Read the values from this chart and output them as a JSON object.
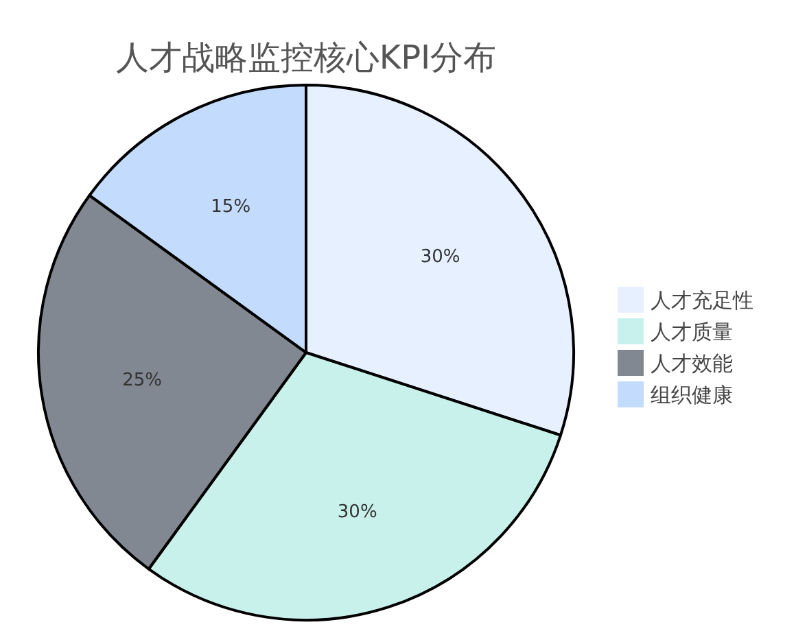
{
  "chart_data": {
    "type": "pie",
    "title": "人才战略监控核心KPI分布",
    "categories": [
      "人才充足性",
      "人才质量",
      "人才效能",
      "组织健康"
    ],
    "values": [
      30,
      30,
      25,
      15
    ],
    "colors": [
      "#e6f0fe",
      "#c9f1eb",
      "#818892",
      "#c3dcfe"
    ],
    "value_labels": [
      "30%",
      "30%",
      "25%",
      "15%"
    ],
    "legend": "right"
  }
}
